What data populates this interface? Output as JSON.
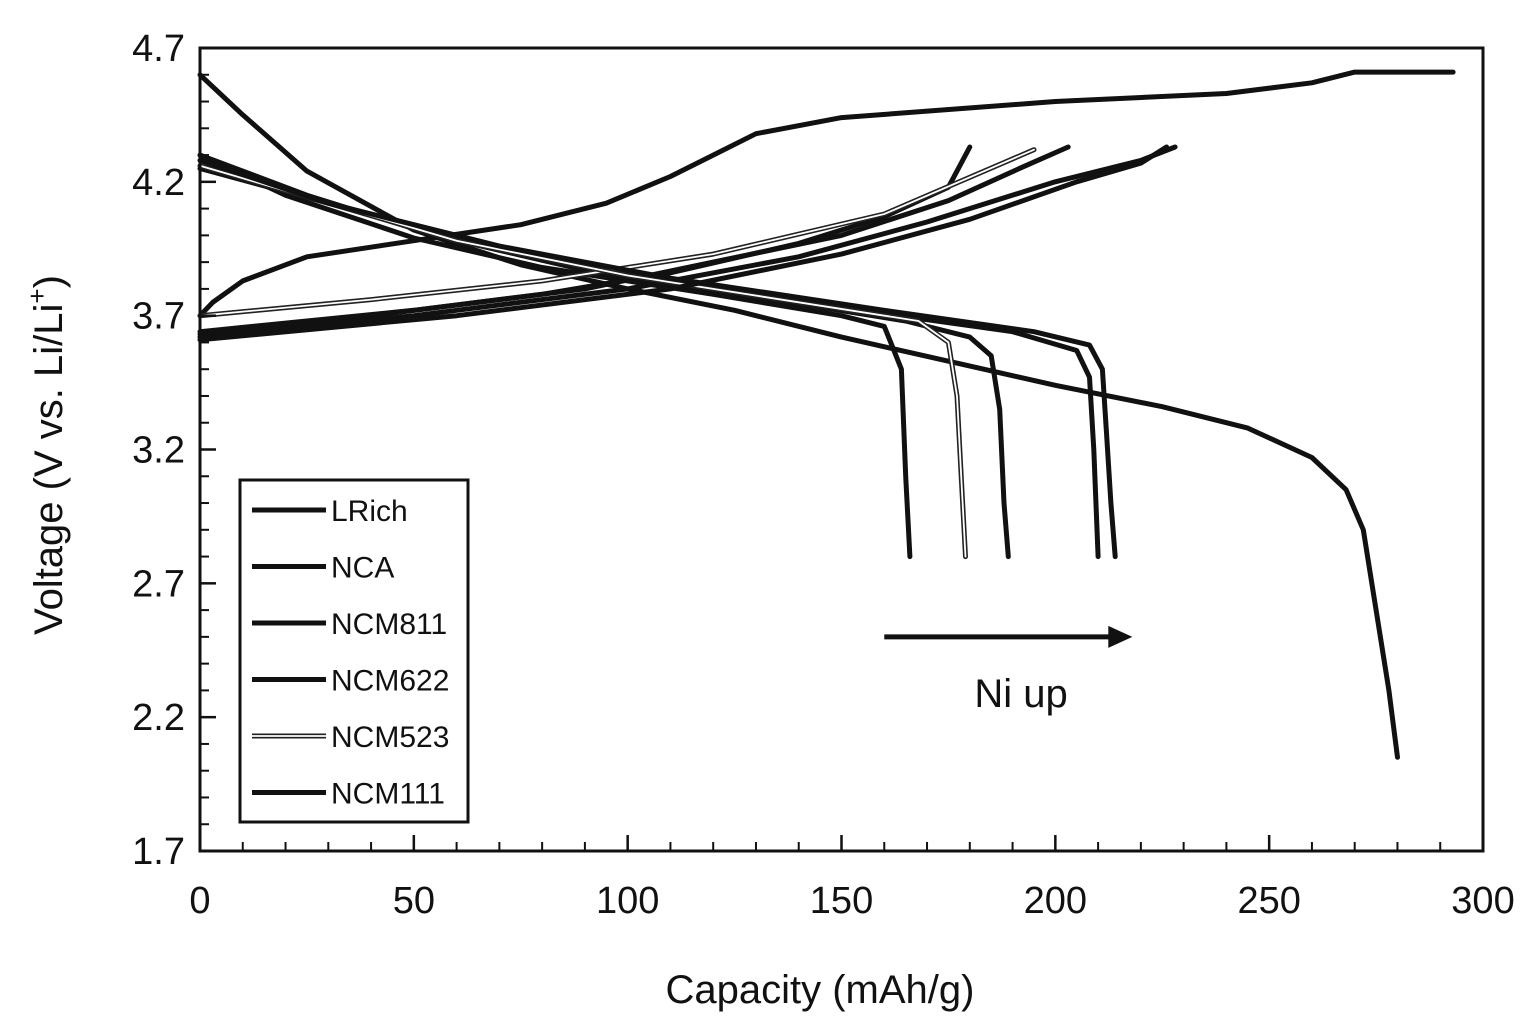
{
  "chart_data": {
    "type": "line",
    "xlabel": "Capacity (mAh/g)",
    "ylabel": "Voltage (V vs. Li/Li",
    "ylabel_superscript": "+",
    "ylabel_close": ")",
    "xlim": [
      0,
      300
    ],
    "ylim": [
      1.7,
      4.7
    ],
    "xticks": [
      0,
      50,
      100,
      150,
      200,
      250,
      300
    ],
    "yticks": [
      1.7,
      2.2,
      2.7,
      3.2,
      3.7,
      4.2,
      4.7
    ],
    "xtick_labels": [
      "0",
      "50",
      "100",
      "150",
      "200",
      "250",
      "300"
    ],
    "ytick_labels": [
      "1.7",
      "2.2",
      "2.7",
      "3.2",
      "3.7",
      "4.2",
      "4.7"
    ],
    "grid": false,
    "legend_position": "bottom-left",
    "annotation": {
      "text": "Ni up",
      "arrow_from": [
        160,
        2.5
      ],
      "arrow_to": [
        218,
        2.5
      ],
      "text_at": [
        192,
        2.29
      ]
    },
    "series": [
      {
        "name": "LRich",
        "color": "#111111",
        "style": "solid",
        "charge": [
          [
            0,
            3.7
          ],
          [
            3,
            3.75
          ],
          [
            10,
            3.83
          ],
          [
            25,
            3.92
          ],
          [
            50,
            3.98
          ],
          [
            75,
            4.04
          ],
          [
            95,
            4.12
          ],
          [
            110,
            4.22
          ],
          [
            120,
            4.3
          ],
          [
            130,
            4.38
          ],
          [
            150,
            4.44
          ],
          [
            200,
            4.5
          ],
          [
            240,
            4.53
          ],
          [
            260,
            4.57
          ],
          [
            270,
            4.61
          ],
          [
            293,
            4.61
          ]
        ],
        "discharge": [
          [
            0,
            4.6
          ],
          [
            10,
            4.45
          ],
          [
            25,
            4.24
          ],
          [
            50,
            4.02
          ],
          [
            75,
            3.89
          ],
          [
            100,
            3.8
          ],
          [
            125,
            3.72
          ],
          [
            150,
            3.62
          ],
          [
            175,
            3.53
          ],
          [
            200,
            3.44
          ],
          [
            225,
            3.36
          ],
          [
            245,
            3.28
          ],
          [
            260,
            3.17
          ],
          [
            268,
            3.05
          ],
          [
            272,
            2.9
          ],
          [
            275,
            2.6
          ],
          [
            278,
            2.3
          ],
          [
            280,
            2.05
          ]
        ]
      },
      {
        "name": "NCA",
        "color": "#111111",
        "style": "solid",
        "charge": [
          [
            0,
            3.63
          ],
          [
            40,
            3.7
          ],
          [
            80,
            3.78
          ],
          [
            110,
            3.86
          ],
          [
            140,
            3.97
          ],
          [
            160,
            4.07
          ],
          [
            175,
            4.18
          ],
          [
            180,
            4.33
          ]
        ],
        "discharge": [
          [
            0,
            4.3
          ],
          [
            20,
            4.15
          ],
          [
            50,
            3.99
          ],
          [
            80,
            3.88
          ],
          [
            120,
            3.78
          ],
          [
            150,
            3.7
          ],
          [
            160,
            3.66
          ],
          [
            164,
            3.5
          ],
          [
            165,
            3.1
          ],
          [
            166,
            2.8
          ]
        ]
      },
      {
        "name": "NCM811",
        "color": "#111111",
        "style": "solid",
        "charge": [
          [
            0,
            3.64
          ],
          [
            50,
            3.72
          ],
          [
            90,
            3.8
          ],
          [
            120,
            3.9
          ],
          [
            150,
            4.0
          ],
          [
            175,
            4.13
          ],
          [
            193,
            4.26
          ],
          [
            203,
            4.33
          ]
        ],
        "discharge": [
          [
            0,
            4.3
          ],
          [
            25,
            4.15
          ],
          [
            55,
            4.0
          ],
          [
            90,
            3.87
          ],
          [
            130,
            3.77
          ],
          [
            165,
            3.68
          ],
          [
            180,
            3.62
          ],
          [
            185,
            3.55
          ],
          [
            187,
            3.35
          ],
          [
            188,
            3.0
          ],
          [
            189,
            2.8
          ]
        ]
      },
      {
        "name": "NCM622",
        "color": "#111111",
        "style": "solid",
        "charge": [
          [
            0,
            3.62
          ],
          [
            50,
            3.7
          ],
          [
            100,
            3.8
          ],
          [
            140,
            3.92
          ],
          [
            170,
            4.05
          ],
          [
            200,
            4.2
          ],
          [
            220,
            4.28
          ],
          [
            228,
            4.33
          ]
        ],
        "discharge": [
          [
            0,
            4.25
          ],
          [
            30,
            4.12
          ],
          [
            60,
            3.99
          ],
          [
            100,
            3.86
          ],
          [
            150,
            3.73
          ],
          [
            190,
            3.64
          ],
          [
            205,
            3.57
          ],
          [
            208,
            3.47
          ],
          [
            209,
            3.2
          ],
          [
            210,
            2.8
          ]
        ]
      },
      {
        "name": "NCM523",
        "color": "#8a8a8a",
        "style": "double",
        "charge": [
          [
            0,
            3.7
          ],
          [
            40,
            3.76
          ],
          [
            80,
            3.83
          ],
          [
            120,
            3.93
          ],
          [
            160,
            4.08
          ],
          [
            195,
            4.32
          ]
        ],
        "discharge": [
          [
            0,
            4.26
          ],
          [
            30,
            4.12
          ],
          [
            60,
            3.98
          ],
          [
            100,
            3.85
          ],
          [
            140,
            3.75
          ],
          [
            168,
            3.68
          ],
          [
            175,
            3.6
          ],
          [
            177,
            3.4
          ],
          [
            178,
            3.1
          ],
          [
            179,
            2.8
          ]
        ]
      },
      {
        "name": "NCM111",
        "color": "#111111",
        "style": "solid",
        "charge": [
          [
            0,
            3.61
          ],
          [
            60,
            3.7
          ],
          [
            110,
            3.8
          ],
          [
            150,
            3.93
          ],
          [
            180,
            4.06
          ],
          [
            205,
            4.2
          ],
          [
            220,
            4.27
          ],
          [
            226,
            4.33
          ]
        ],
        "discharge": [
          [
            0,
            4.28
          ],
          [
            30,
            4.12
          ],
          [
            70,
            3.96
          ],
          [
            110,
            3.84
          ],
          [
            160,
            3.72
          ],
          [
            195,
            3.64
          ],
          [
            208,
            3.59
          ],
          [
            211,
            3.5
          ],
          [
            212,
            3.25
          ],
          [
            213,
            3.0
          ],
          [
            214,
            2.8
          ]
        ]
      }
    ]
  }
}
